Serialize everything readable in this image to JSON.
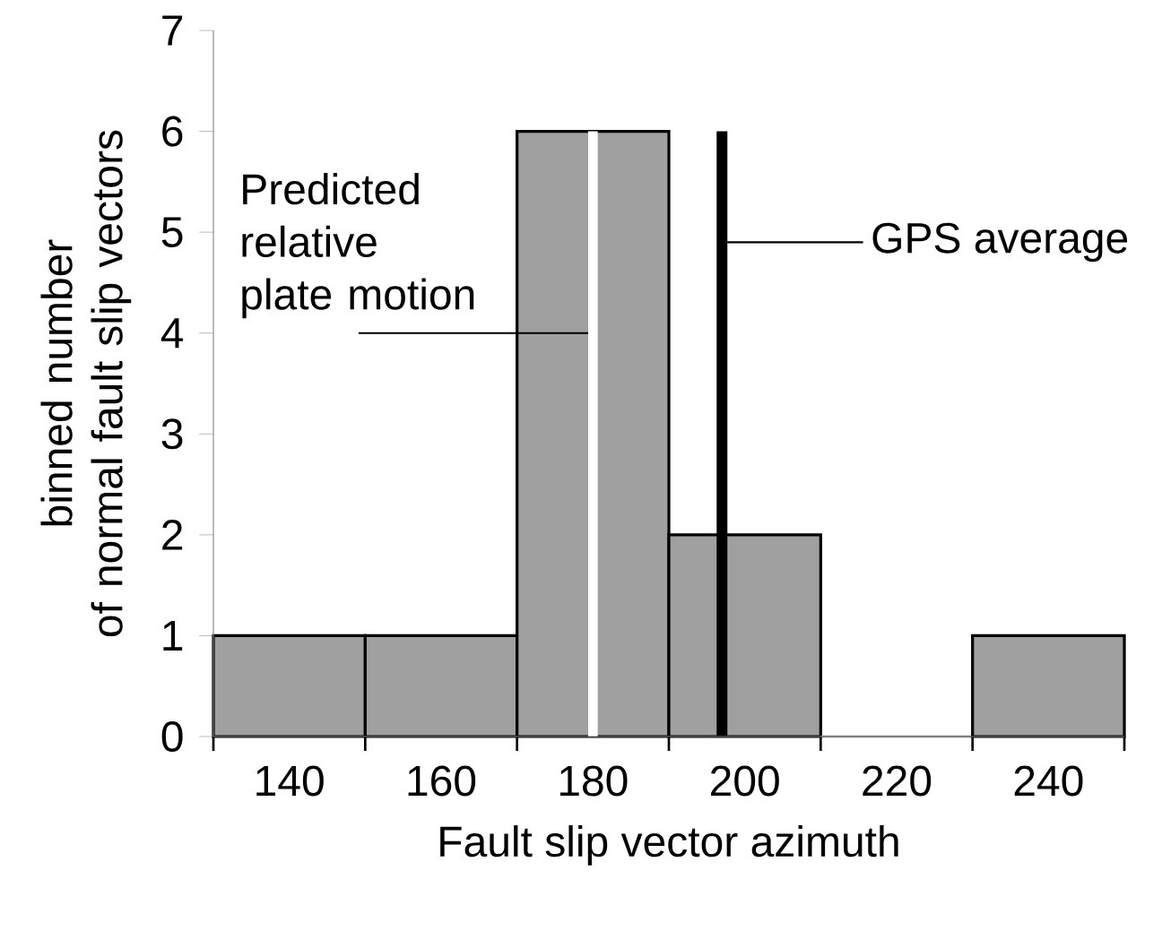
{
  "chart_data": {
    "type": "histogram",
    "xlabel": "Fault slip vector azimuth",
    "ylabel": "binned number\nof normal fault slip vectors",
    "bins": [
      130,
      150,
      170,
      190,
      210,
      230,
      250
    ],
    "values": [
      1,
      1,
      6,
      2,
      0,
      1
    ],
    "color": "#a0a0a0",
    "xlim": [
      130,
      250
    ],
    "ylim": [
      0,
      7
    ],
    "xticks": [
      {
        "value": 130,
        "label": null
      },
      140,
      {
        "value": 150,
        "label": null
      },
      160,
      {
        "value": 170,
        "label": null
      },
      180,
      {
        "value": 190,
        "label": null
      },
      200,
      {
        "value": 210,
        "label": null
      },
      220,
      {
        "value": 230,
        "label": null
      },
      240,
      {
        "value": 250,
        "label": null
      }
    ],
    "yticks": [
      0,
      1,
      2,
      3,
      4,
      5,
      6,
      7
    ],
    "ref_lines": [
      {
        "axis": "x",
        "value": 180,
        "color": "#ffffff"
      },
      {
        "axis": "x",
        "value": 197,
        "color": "#000000",
        "label": "GPS average"
      }
    ],
    "annotations": [
      {
        "text": "Predicted relative plate motion",
        "x": 180,
        "y": 4
      }
    ]
  }
}
